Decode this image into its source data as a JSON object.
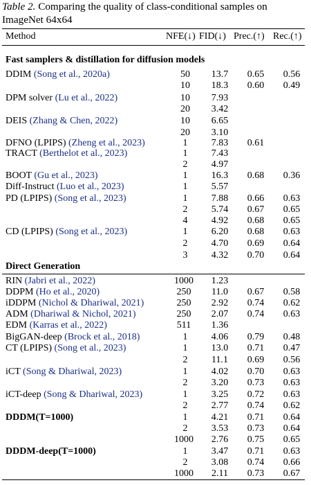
{
  "caption": {
    "label": "Table 2.",
    "text": " Comparing the quality of class-conditional samples on ImageNet 64x64"
  },
  "headers": {
    "method": "Method",
    "nfe": "NFE(↓)",
    "fid": "FID(↓)",
    "prec": "Prec.(↑)",
    "rec": "Rec.(↑)"
  },
  "sections": [
    {
      "title": "Fast samplers & distillation for diffusion models",
      "rows": [
        {
          "method": "DDIM ",
          "cite": "(Song et al., 2020a)",
          "nfe": "50",
          "fid": "13.7",
          "prec": "0.65",
          "rec": "0.56"
        },
        {
          "method": "",
          "cite": "",
          "nfe": "10",
          "fid": "18.3",
          "prec": "0.60",
          "rec": "0.49"
        },
        {
          "method": "DPM solver ",
          "cite": "(Lu et al., 2022)",
          "nfe": "10",
          "fid": "7.93",
          "prec": "",
          "rec": ""
        },
        {
          "method": "",
          "cite": "",
          "nfe": "20",
          "fid": "3.42",
          "prec": "",
          "rec": ""
        },
        {
          "method": "DEIS ",
          "cite": "(Zhang & Chen, 2022)",
          "nfe": "10",
          "fid": "6.65",
          "prec": "",
          "rec": ""
        },
        {
          "method": "",
          "cite": "",
          "nfe": "20",
          "fid": "3.10",
          "prec": "",
          "rec": ""
        },
        {
          "method": "DFNO (LPIPS) ",
          "cite": "(Zheng et al., 2023)",
          "nfe": "1",
          "fid": "7.83",
          "prec": "0.61",
          "rec": ""
        },
        {
          "method": "TRACT ",
          "cite": "(Berthelot et al., 2023)",
          "nfe": "1",
          "fid": "7.43",
          "prec": "",
          "rec": ""
        },
        {
          "method": "",
          "cite": "",
          "nfe": "2",
          "fid": "4.97",
          "prec": "",
          "rec": ""
        },
        {
          "method": "BOOT ",
          "cite": "(Gu et al., 2023)",
          "nfe": "1",
          "fid": "16.3",
          "prec": "0.68",
          "rec": "0.36"
        },
        {
          "method": "Diff-Instruct ",
          "cite": "(Luo et al., 2023)",
          "nfe": "1",
          "fid": "5.57",
          "prec": "",
          "rec": ""
        },
        {
          "method": "PD (LPIPS) ",
          "cite": "(Song et al., 2023)",
          "nfe": "1",
          "fid": "7.88",
          "prec": "0.66",
          "rec": "0.63"
        },
        {
          "method": "",
          "cite": "",
          "nfe": "2",
          "fid": "5.74",
          "prec": "0.67",
          "rec": "0.65"
        },
        {
          "method": "",
          "cite": "",
          "nfe": "4",
          "fid": "4.92",
          "prec": "0.68",
          "rec": "0.65"
        },
        {
          "method": "CD (LPIPS) ",
          "cite": "(Song et al., 2023)",
          "nfe": "1",
          "fid": "6.20",
          "prec": "0.68",
          "rec": "0.63"
        },
        {
          "method": "",
          "cite": "",
          "nfe": "2",
          "fid": "4.70",
          "prec": "0.69",
          "rec": "0.64"
        },
        {
          "method": "",
          "cite": "",
          "nfe": "3",
          "fid": "4.32",
          "prec": "0.70",
          "rec": "0.64"
        }
      ]
    },
    {
      "title": "Direct Generation",
      "rows": [
        {
          "method": "RIN ",
          "cite": "(Jabri et al., 2022)",
          "nfe": "1000",
          "fid": "1.23",
          "prec": "",
          "rec": ""
        },
        {
          "method": "DDPM ",
          "cite": "(Ho et al., 2020)",
          "nfe": "250",
          "fid": "11.0",
          "prec": "0.67",
          "rec": "0.58"
        },
        {
          "method": "iDDPM ",
          "cite": "(Nichol & Dhariwal, 2021)",
          "nfe": "250",
          "fid": "2.92",
          "prec": "0.74",
          "rec": "0.62"
        },
        {
          "method": "ADM ",
          "cite": "(Dhariwal & Nichol, 2021)",
          "nfe": "250",
          "fid": "2.07",
          "prec": "0.74",
          "rec": "0.63"
        },
        {
          "method": "EDM ",
          "cite": "(Karras et al., 2022)",
          "nfe": "511",
          "fid": "1.36",
          "prec": "",
          "rec": ""
        },
        {
          "method": "BigGAN-deep ",
          "cite": "(Brock et al., 2018)",
          "nfe": "1",
          "fid": "4.06",
          "prec": "0.79",
          "rec": "0.48"
        },
        {
          "method": "CT (LPIPS) ",
          "cite": "(Song et al., 2023)",
          "nfe": "1",
          "fid": "13.0",
          "prec": "0.71",
          "rec": "0.47"
        },
        {
          "method": "",
          "cite": "",
          "nfe": "2",
          "fid": "11.1",
          "prec": "0.69",
          "rec": "0.56"
        },
        {
          "method": "iCT ",
          "cite": "(Song & Dhariwal, 2023)",
          "nfe": "1",
          "fid": "4.02",
          "prec": "0.70",
          "rec": "0.63"
        },
        {
          "method": "",
          "cite": "",
          "nfe": "2",
          "fid": "3.20",
          "prec": "0.73",
          "rec": "0.63"
        },
        {
          "method": "iCT-deep ",
          "cite": "(Song & Dhariwal, 2023)",
          "nfe": "1",
          "fid": "3.25",
          "prec": "0.72",
          "rec": "0.63"
        },
        {
          "method": "",
          "cite": "",
          "nfe": "2",
          "fid": "2.77",
          "prec": "0.74",
          "rec": "0.62"
        },
        {
          "method": "DDDM(T=1000)",
          "cite": "",
          "bold": true,
          "nfe": "1",
          "fid": "4.21",
          "prec": "0.71",
          "rec": "0.64"
        },
        {
          "method": "",
          "cite": "",
          "nfe": "2",
          "fid": "3.53",
          "prec": "0.73",
          "rec": "0.64"
        },
        {
          "method": "",
          "cite": "",
          "nfe": "1000",
          "fid": "2.76",
          "prec": "0.75",
          "rec": "0.65"
        },
        {
          "method": "DDDM-deep(T=1000)",
          "cite": "",
          "bold": true,
          "nfe": "1",
          "fid": "3.47",
          "prec": "0.71",
          "rec": "0.63"
        },
        {
          "method": "",
          "cite": "",
          "nfe": "2",
          "fid": "3.08",
          "prec": "0.74",
          "rec": "0.66"
        },
        {
          "method": "",
          "cite": "",
          "nfe": "1000",
          "fid": "2.11",
          "prec": "0.73",
          "rec": "0.67"
        }
      ]
    }
  ]
}
